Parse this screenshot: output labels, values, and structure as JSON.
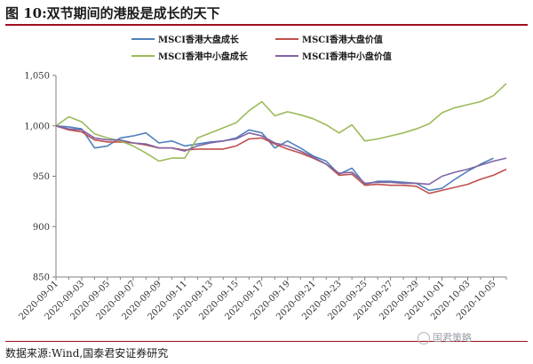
{
  "figure": {
    "title": "图 10:双节期间的港股是成长的天下",
    "source": "数据来源:Wind,国泰君安证券研究",
    "watermark": "国君策略"
  },
  "chart_data": {
    "type": "line",
    "title": "",
    "xlabel": "",
    "ylabel": "",
    "ylim": [
      850,
      1050
    ],
    "yticks": [
      850,
      900,
      950,
      1000,
      1050
    ],
    "ytick_labels": [
      "850",
      "900",
      "950",
      "1,000",
      "1,050"
    ],
    "x_tick_labels": [
      "2020-09-01",
      "2020-09-03",
      "2020-09-05",
      "2020-09-07",
      "2020-09-09",
      "2020-09-11",
      "2020-09-13",
      "2020-09-15",
      "2020-09-17",
      "2020-09-19",
      "2020-09-21",
      "2020-09-23",
      "2020-09-25",
      "2020-09-27",
      "2020-09-29",
      "2020-10-01",
      "2020-10-03",
      "2020-10-05"
    ],
    "legend_position": "top",
    "grid": false,
    "series": [
      {
        "name": "MSCI香港大盘成长",
        "color": "#4f81bd",
        "points": [
          [
            0,
            1000
          ],
          [
            1,
            999
          ],
          [
            2,
            997
          ],
          [
            3,
            978
          ],
          [
            4,
            980
          ],
          [
            5,
            988
          ],
          [
            6,
            990
          ],
          [
            7,
            993
          ],
          [
            8,
            983
          ],
          [
            9,
            985
          ],
          [
            10,
            980
          ],
          [
            11,
            982
          ],
          [
            12,
            984
          ],
          [
            13,
            985
          ],
          [
            14,
            988
          ],
          [
            15,
            996
          ],
          [
            16,
            993
          ],
          [
            17,
            978
          ],
          [
            18,
            985
          ],
          [
            19,
            978
          ],
          [
            20,
            970
          ],
          [
            21,
            965
          ],
          [
            22,
            952
          ],
          [
            23,
            958
          ],
          [
            24,
            942
          ],
          [
            25,
            945
          ],
          [
            26,
            945
          ],
          [
            27,
            944
          ],
          [
            28,
            943
          ],
          [
            29,
            936
          ],
          [
            30,
            938
          ],
          [
            31,
            947
          ],
          [
            32,
            955
          ],
          [
            33,
            962
          ],
          [
            34,
            968
          ]
        ]
      },
      {
        "name": "MSCI香港大盘价值",
        "color": "#c0504d",
        "points": [
          [
            0,
            1000
          ],
          [
            1,
            996
          ],
          [
            2,
            994
          ],
          [
            3,
            986
          ],
          [
            4,
            984
          ],
          [
            5,
            984
          ],
          [
            6,
            983
          ],
          [
            7,
            981
          ],
          [
            8,
            978
          ],
          [
            9,
            978
          ],
          [
            10,
            976
          ],
          [
            11,
            977
          ],
          [
            12,
            977
          ],
          [
            13,
            977
          ],
          [
            14,
            980
          ],
          [
            15,
            987
          ],
          [
            16,
            988
          ],
          [
            17,
            982
          ],
          [
            18,
            977
          ],
          [
            19,
            973
          ],
          [
            20,
            968
          ],
          [
            21,
            962
          ],
          [
            22,
            951
          ],
          [
            23,
            952
          ],
          [
            24,
            941
          ],
          [
            25,
            942
          ],
          [
            26,
            941
          ],
          [
            27,
            941
          ],
          [
            28,
            940
          ],
          [
            29,
            933
          ],
          [
            30,
            936
          ],
          [
            31,
            939
          ],
          [
            32,
            942
          ],
          [
            33,
            947
          ],
          [
            34,
            951
          ],
          [
            35,
            957
          ]
        ]
      },
      {
        "name": "MSCI香港中小盘成长",
        "color": "#9bbb59",
        "points": [
          [
            0,
            1000
          ],
          [
            1,
            1009
          ],
          [
            2,
            1004
          ],
          [
            3,
            992
          ],
          [
            4,
            988
          ],
          [
            5,
            985
          ],
          [
            6,
            980
          ],
          [
            7,
            973
          ],
          [
            8,
            965
          ],
          [
            9,
            968
          ],
          [
            10,
            968
          ],
          [
            11,
            988
          ],
          [
            12,
            993
          ],
          [
            13,
            998
          ],
          [
            14,
            1003
          ],
          [
            15,
            1015
          ],
          [
            16,
            1024
          ],
          [
            17,
            1010
          ],
          [
            18,
            1014
          ],
          [
            19,
            1011
          ],
          [
            20,
            1007
          ],
          [
            21,
            1001
          ],
          [
            22,
            993
          ],
          [
            23,
            1001
          ],
          [
            24,
            985
          ],
          [
            25,
            987
          ],
          [
            26,
            990
          ],
          [
            27,
            993
          ],
          [
            28,
            997
          ],
          [
            29,
            1002
          ],
          [
            30,
            1013
          ],
          [
            31,
            1018
          ],
          [
            32,
            1021
          ],
          [
            33,
            1024
          ],
          [
            34,
            1030
          ],
          [
            35,
            1042
          ]
        ]
      },
      {
        "name": "MSCI香港中小盘价值",
        "color": "#8064a2",
        "points": [
          [
            0,
            1000
          ],
          [
            1,
            997
          ],
          [
            2,
            996
          ],
          [
            3,
            988
          ],
          [
            4,
            986
          ],
          [
            5,
            986
          ],
          [
            6,
            983
          ],
          [
            7,
            982
          ],
          [
            8,
            978
          ],
          [
            9,
            978
          ],
          [
            10,
            975
          ],
          [
            11,
            980
          ],
          [
            12,
            983
          ],
          [
            13,
            985
          ],
          [
            14,
            987
          ],
          [
            15,
            993
          ],
          [
            16,
            990
          ],
          [
            17,
            983
          ],
          [
            18,
            980
          ],
          [
            19,
            975
          ],
          [
            20,
            969
          ],
          [
            21,
            962
          ],
          [
            22,
            953
          ],
          [
            23,
            954
          ],
          [
            24,
            943
          ],
          [
            25,
            944
          ],
          [
            26,
            944
          ],
          [
            27,
            943
          ],
          [
            28,
            943
          ],
          [
            29,
            942
          ],
          [
            30,
            950
          ],
          [
            31,
            954
          ],
          [
            32,
            957
          ],
          [
            33,
            961
          ],
          [
            34,
            965
          ],
          [
            35,
            968
          ]
        ]
      }
    ]
  }
}
